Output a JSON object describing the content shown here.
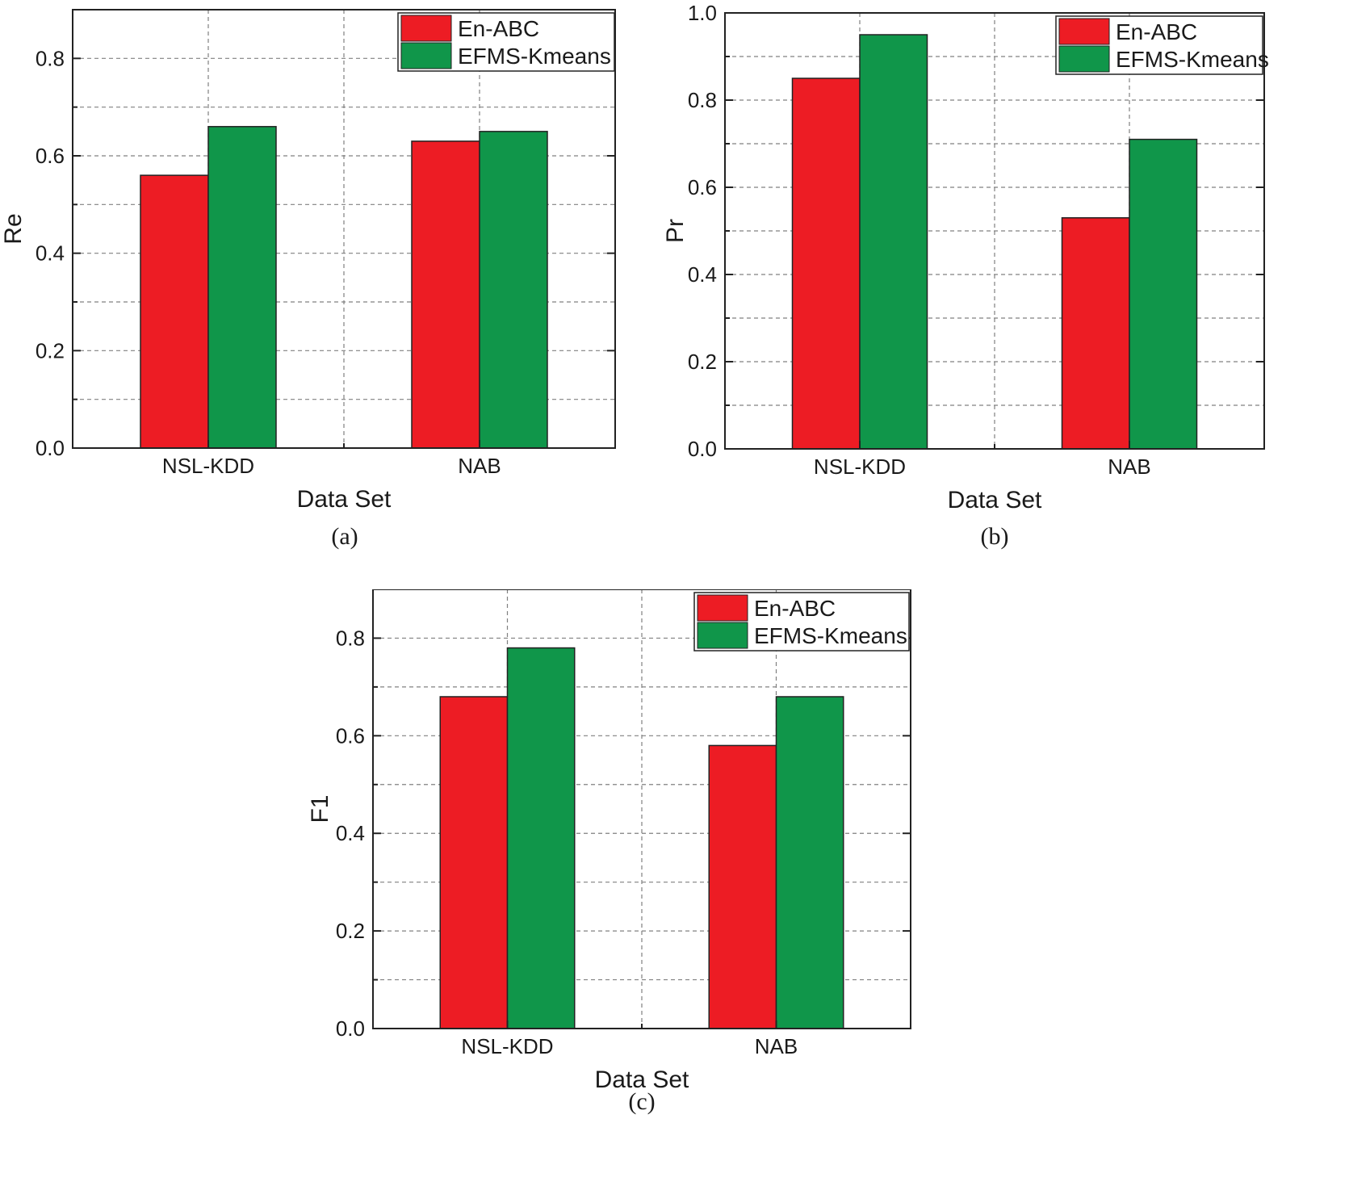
{
  "colors": {
    "en_abc": "#ed1c24",
    "efms_kmeans": "#10964a"
  },
  "chart_data": [
    {
      "panel": "a",
      "type": "bar",
      "caption": "(a)",
      "xlabel": "Data Set",
      "ylabel": "Re",
      "categories": [
        "NSL-KDD",
        "NAB"
      ],
      "ylim": [
        0,
        0.9
      ],
      "yticks": [
        "0.0",
        "0.2",
        "0.4",
        "0.6",
        "0.8"
      ],
      "legend": [
        "En-ABC",
        "EFMS-Kmeans"
      ],
      "legend_position": "top-right",
      "series": [
        {
          "name": "En-ABC",
          "values": [
            0.56,
            0.63
          ]
        },
        {
          "name": "EFMS-Kmeans",
          "values": [
            0.66,
            0.65
          ]
        }
      ]
    },
    {
      "panel": "b",
      "type": "bar",
      "caption": "(b)",
      "xlabel": "Data Set",
      "ylabel": "Pr",
      "categories": [
        "NSL-KDD",
        "NAB"
      ],
      "ylim": [
        0,
        1.0
      ],
      "yticks": [
        "0.0",
        "0.2",
        "0.4",
        "0.6",
        "0.8",
        "1.0"
      ],
      "legend": [
        "En-ABC",
        "EFMS-Kmeans"
      ],
      "legend_position": "top-right",
      "series": [
        {
          "name": "En-ABC",
          "values": [
            0.85,
            0.53
          ]
        },
        {
          "name": "EFMS-Kmeans",
          "values": [
            0.95,
            0.71
          ]
        }
      ]
    },
    {
      "panel": "c",
      "type": "bar",
      "caption": "(c)",
      "xlabel": "Data Set",
      "ylabel": "F1",
      "categories": [
        "NSL-KDD",
        "NAB"
      ],
      "ylim": [
        0,
        0.9
      ],
      "yticks": [
        "0.0",
        "0.2",
        "0.4",
        "0.6",
        "0.8"
      ],
      "legend": [
        "En-ABC",
        "EFMS-Kmeans"
      ],
      "legend_position": "top-right",
      "series": [
        {
          "name": "En-ABC",
          "values": [
            0.68,
            0.58
          ]
        },
        {
          "name": "EFMS-Kmeans",
          "values": [
            0.78,
            0.68
          ]
        }
      ]
    }
  ]
}
